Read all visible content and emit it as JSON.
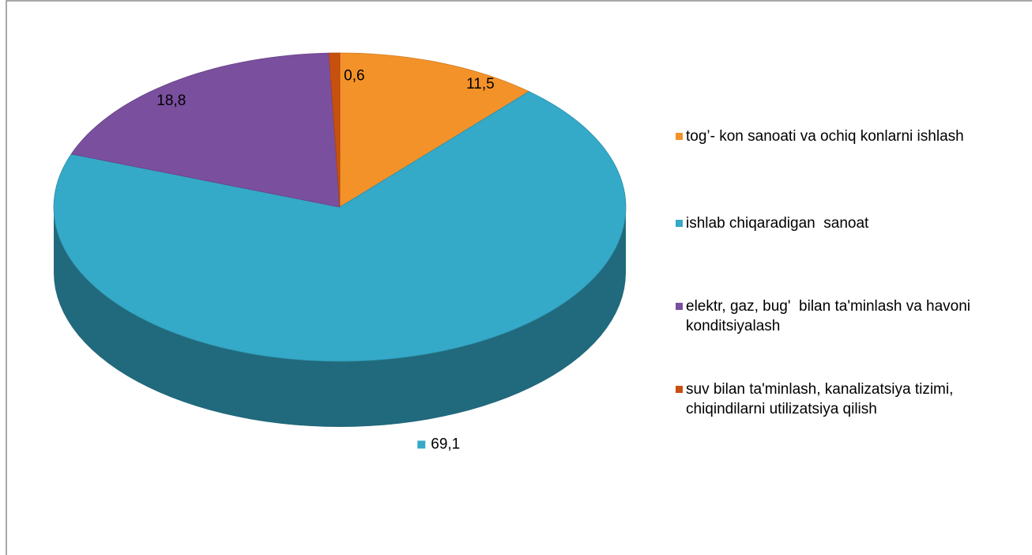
{
  "chart_data": {
    "type": "pie3d",
    "categories": [
      "tog’- kon sanoati va ochiq konlarni ishlash",
      "ishlab chiqaradigan  sanoat",
      "elektr, gaz, bug'  bilan ta'minlash va havoni konditsiyalash",
      "suv bilan ta'minlash, kanalizatsiya tizimi, chiqindilarni utilizatsiya qilish"
    ],
    "values": [
      11.5,
      69.1,
      18.8,
      0.6
    ],
    "value_labels": [
      "11,5",
      "69,1",
      "18,8",
      "0,6"
    ],
    "colors": [
      "#f39229",
      "#35a9c8",
      "#7a4f9e",
      "#c8500f"
    ],
    "legend": "right"
  }
}
